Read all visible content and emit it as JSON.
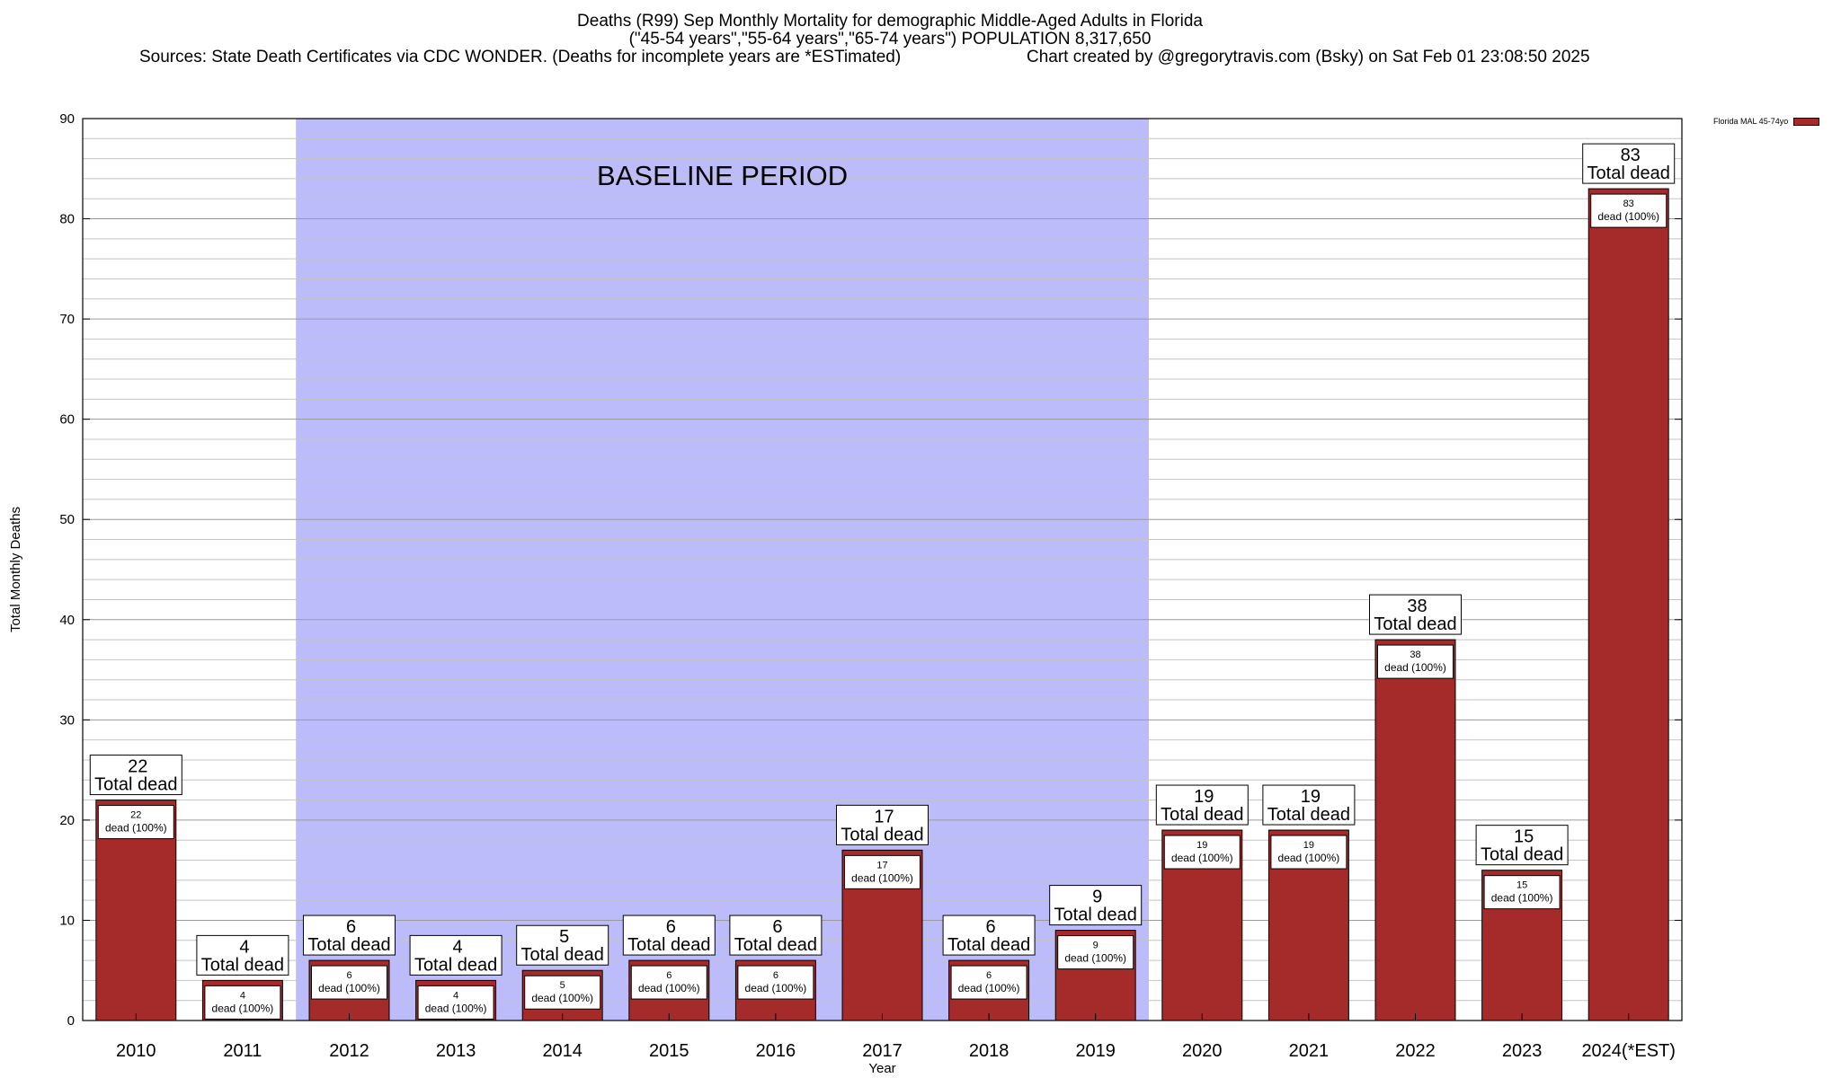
{
  "title": {
    "line1": "Deaths (R99) Sep Monthly Mortality for demographic Middle-Aged Adults in Florida",
    "line2": "(\"45-54 years\",\"55-64 years\",\"65-74 years\") POPULATION 8,317,650",
    "sources": "Sources: State Death Certificates via CDC WONDER. (Deaths for incomplete years are *ESTimated)",
    "credit": "Chart created by @gregorytravis.com (Bsky) on Sat Feb 01 23:08:50 2025"
  },
  "legend": {
    "label": "Florida MAL 45-74yo",
    "color": "#a52a2a"
  },
  "chart_data": {
    "type": "bar",
    "categories": [
      "2010",
      "2011",
      "2012",
      "2013",
      "2014",
      "2015",
      "2016",
      "2017",
      "2018",
      "2019",
      "2020",
      "2021",
      "2022",
      "2023",
      "2024(*EST)"
    ],
    "series": [
      {
        "name": "Florida MAL 45-74yo",
        "values": [
          22,
          4,
          6,
          4,
          5,
          6,
          6,
          17,
          6,
          9,
          19,
          19,
          38,
          15,
          83
        ],
        "color": "#a52a2a"
      }
    ],
    "xlabel": "Year",
    "ylabel": "Total Monthly Deaths",
    "ylim": [
      0,
      90
    ],
    "yticks": [
      0,
      10,
      20,
      30,
      40,
      50,
      60,
      70,
      80,
      90
    ],
    "grid": true,
    "outer_label_suffix": "Total dead",
    "inner_label_suffix": "dead (100%)",
    "shaded_region": {
      "label": "BASELINE PERIOD",
      "from": "2012",
      "to": "2019",
      "color": "#bcbcfa"
    }
  }
}
